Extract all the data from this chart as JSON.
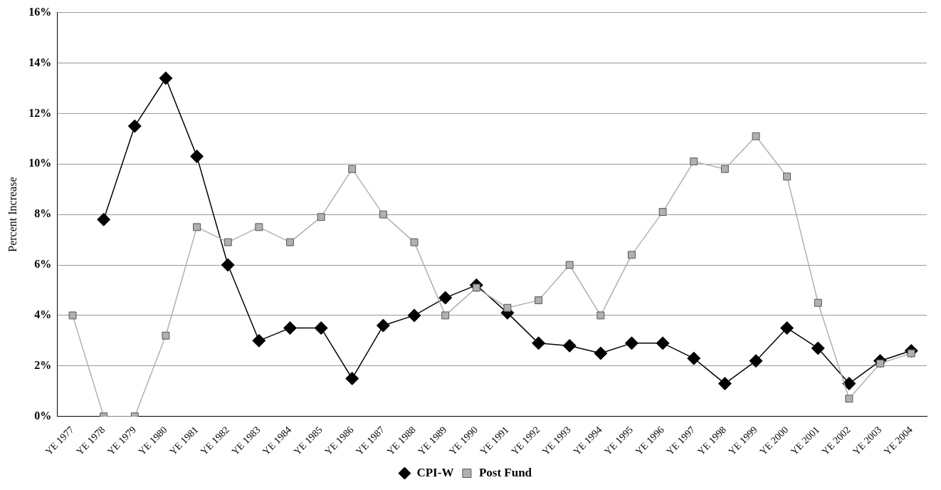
{
  "chart_data": {
    "type": "line",
    "ylabel": "Percent Increase",
    "categories": [
      "YE 1977",
      "YE 1978",
      "YE 1979",
      "YE 1980",
      "YE 1981",
      "YE 1982",
      "YE 1983",
      "YE 1984",
      "YE 1985",
      "YE 1986",
      "YE 1987",
      "YE 1988",
      "YE 1989",
      "YE 1990",
      "YE 1991",
      "YE 1992",
      "YE 1993",
      "YE 1994",
      "YE 1995",
      "YE 1996",
      "YE 1997",
      "YE 1998",
      "YE 1999",
      "YE 2000",
      "YE 2001",
      "YE 2002",
      "YE 2003",
      "YE 2004"
    ],
    "series": [
      {
        "name": "CPI-W",
        "color": "#000000",
        "marker": "diamond",
        "values": [
          null,
          7.8,
          11.5,
          13.4,
          10.3,
          6.0,
          3.0,
          3.5,
          3.5,
          1.5,
          3.6,
          4.0,
          4.7,
          5.2,
          4.1,
          2.9,
          2.8,
          2.5,
          2.9,
          2.9,
          2.3,
          1.3,
          2.2,
          3.5,
          2.7,
          1.3,
          2.2,
          2.6
        ]
      },
      {
        "name": "Post Fund",
        "color": "#b0b0b0",
        "marker": "square",
        "values": [
          4.0,
          0,
          0,
          3.2,
          7.5,
          6.9,
          7.5,
          6.9,
          7.9,
          9.8,
          8.0,
          6.9,
          4.0,
          5.1,
          4.3,
          4.6,
          6.0,
          4.0,
          6.4,
          8.1,
          10.1,
          9.8,
          11.1,
          9.5,
          4.5,
          0.7,
          2.1,
          2.5
        ]
      }
    ],
    "ylim": [
      0,
      16
    ],
    "yticks": [
      {
        "value": 0,
        "label": "0%"
      },
      {
        "value": 2,
        "label": "2%"
      },
      {
        "value": 4,
        "label": "4%"
      },
      {
        "value": 6,
        "label": "6%"
      },
      {
        "value": 8,
        "label": "8%"
      },
      {
        "value": 10,
        "label": "10%"
      },
      {
        "value": 12,
        "label": "12%"
      },
      {
        "value": 14,
        "label": "14%"
      },
      {
        "value": 16,
        "label": "16%"
      }
    ],
    "grid": "y",
    "legend": "bottom",
    "line_style": "solid"
  }
}
